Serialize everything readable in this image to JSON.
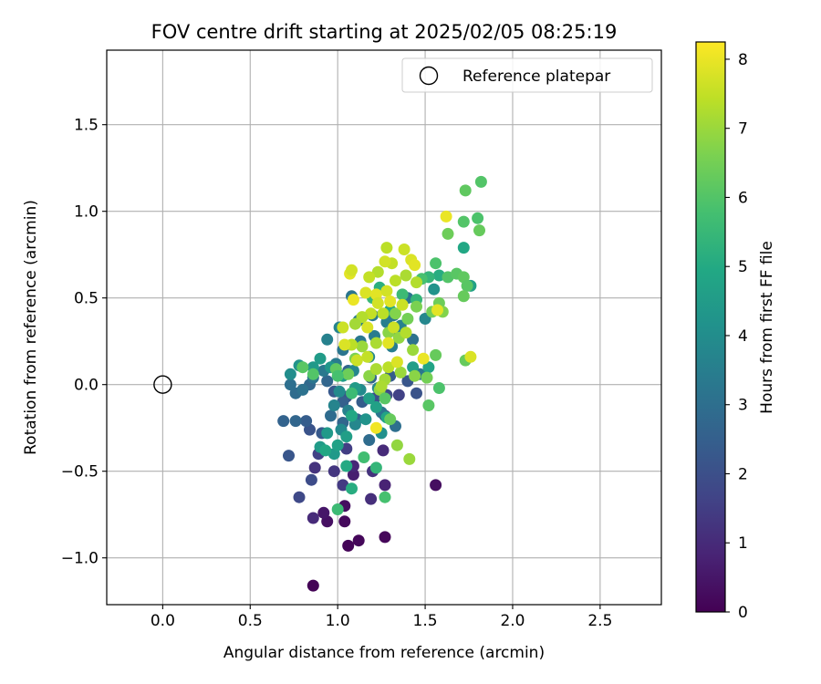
{
  "chart_data": {
    "type": "scatter",
    "title": "FOV centre drift starting at 2025/02/05 08:25:19",
    "xlabel": "Angular distance from reference (arcmin)",
    "ylabel": "Rotation from reference (arcmin)",
    "xlim": [
      -0.32,
      2.85
    ],
    "ylim": [
      -1.27,
      1.93
    ],
    "xticks": [
      0.0,
      0.5,
      1.0,
      1.5,
      2.0,
      2.5
    ],
    "xtick_labels": [
      "0.0",
      "0.5",
      "1.0",
      "1.5",
      "2.0",
      "2.5"
    ],
    "yticks": [
      -1.0,
      -0.5,
      0.0,
      0.5,
      1.0,
      1.5
    ],
    "ytick_labels": [
      "−1.0",
      "−0.5",
      "0.0",
      "0.5",
      "1.0",
      "1.5"
    ],
    "grid": true,
    "legend": {
      "placement": "upper right",
      "entries": [
        "Reference platepar"
      ]
    },
    "reference_point": {
      "x": 0.0,
      "y": 0.0,
      "marker": "open circle"
    },
    "colorbar": {
      "label": "Hours from first FF file",
      "colormap": "viridis",
      "range": [
        0,
        8.25
      ],
      "ticks": [
        0,
        1,
        2,
        3,
        4,
        5,
        6,
        7,
        8
      ],
      "tick_labels": [
        "0",
        "1",
        "2",
        "3",
        "4",
        "5",
        "6",
        "7",
        "8"
      ]
    },
    "points": [
      [
        0.86,
        -1.16,
        0.05
      ],
      [
        1.06,
        -0.93,
        0.1
      ],
      [
        1.12,
        -0.9,
        0.15
      ],
      [
        1.27,
        -0.88,
        0.12
      ],
      [
        1.04,
        -0.79,
        0.2
      ],
      [
        0.94,
        -0.79,
        0.35
      ],
      [
        1.04,
        -0.7,
        0.3
      ],
      [
        0.92,
        -0.74,
        0.5
      ],
      [
        1.56,
        -0.58,
        0.3
      ],
      [
        1.27,
        -0.58,
        0.8
      ],
      [
        1.09,
        -0.52,
        0.7
      ],
      [
        1.19,
        -0.66,
        1.1
      ],
      [
        0.86,
        -0.77,
        1.0
      ],
      [
        0.87,
        -0.48,
        1.2
      ],
      [
        0.98,
        -0.5,
        1.3
      ],
      [
        1.03,
        -0.58,
        1.4
      ],
      [
        1.09,
        -0.47,
        0.9
      ],
      [
        1.2,
        -0.5,
        1.2
      ],
      [
        1.26,
        -0.38,
        1.0
      ],
      [
        1.05,
        -0.37,
        1.5
      ],
      [
        0.89,
        -0.4,
        1.6
      ],
      [
        0.78,
        -0.65,
        1.8
      ],
      [
        0.85,
        -0.55,
        1.9
      ],
      [
        0.72,
        -0.41,
        2.2
      ],
      [
        0.84,
        -0.26,
        2.1
      ],
      [
        0.91,
        -0.28,
        2.3
      ],
      [
        0.82,
        -0.21,
        2.4
      ],
      [
        0.69,
        -0.21,
        2.6
      ],
      [
        0.76,
        -0.21,
        2.7
      ],
      [
        1.27,
        -0.18,
        1.3
      ],
      [
        1.35,
        -0.06,
        1.6
      ],
      [
        1.28,
        -0.06,
        1.8
      ],
      [
        1.21,
        -0.08,
        2.0
      ],
      [
        1.05,
        -0.07,
        2.1
      ],
      [
        0.98,
        -0.04,
        2.3
      ],
      [
        1.03,
        -0.1,
        2.5
      ],
      [
        1.14,
        -0.1,
        2.4
      ],
      [
        1.11,
        -0.2,
        2.6
      ],
      [
        1.03,
        -0.22,
        2.7
      ],
      [
        0.96,
        -0.18,
        2.9
      ],
      [
        1.18,
        -0.32,
        2.9
      ],
      [
        1.33,
        -0.24,
        3.0
      ],
      [
        1.25,
        -0.16,
        3.2
      ],
      [
        1.4,
        0.02,
        2.2
      ],
      [
        1.45,
        -0.05,
        2.1
      ],
      [
        1.3,
        0.05,
        2.4
      ],
      [
        1.19,
        0.04,
        2.6
      ],
      [
        1.06,
        0.08,
        2.7
      ],
      [
        0.94,
        0.02,
        2.7
      ],
      [
        0.84,
        0.0,
        2.8
      ],
      [
        0.76,
        -0.05,
        2.9
      ],
      [
        0.73,
        0.0,
        3.0
      ],
      [
        0.8,
        -0.03,
        3.1
      ],
      [
        0.86,
        0.04,
        3.2
      ],
      [
        0.92,
        0.08,
        3.3
      ],
      [
        0.99,
        0.12,
        3.4
      ],
      [
        1.03,
        0.2,
        3.2
      ],
      [
        1.13,
        0.25,
        3.3
      ],
      [
        1.21,
        0.28,
        3.4
      ],
      [
        1.31,
        0.22,
        3.5
      ],
      [
        1.36,
        0.34,
        3.6
      ],
      [
        1.28,
        0.36,
        3.5
      ],
      [
        1.2,
        0.4,
        3.4
      ],
      [
        1.12,
        0.37,
        3.3
      ],
      [
        1.01,
        0.33,
        3.7
      ],
      [
        0.94,
        0.26,
        3.6
      ],
      [
        1.08,
        0.51,
        3.2
      ],
      [
        1.43,
        0.26,
        3.1
      ],
      [
        1.47,
        0.06,
        3.2
      ],
      [
        1.32,
        0.4,
        3.3
      ],
      [
        1.4,
        0.5,
        3.2
      ],
      [
        1.55,
        0.55,
        4.2
      ],
      [
        1.5,
        0.38,
        3.8
      ],
      [
        1.35,
        0.28,
        3.7
      ],
      [
        1.18,
        0.16,
        3.8
      ],
      [
        1.09,
        0.08,
        3.8
      ],
      [
        1.01,
        -0.04,
        3.9
      ],
      [
        0.98,
        -0.12,
        3.7
      ],
      [
        1.06,
        -0.15,
        3.6
      ],
      [
        1.13,
        -0.03,
        3.9
      ],
      [
        1.23,
        -0.02,
        3.8
      ],
      [
        1.1,
        -0.23,
        3.8
      ],
      [
        1.02,
        -0.26,
        3.9
      ],
      [
        1.25,
        -0.28,
        4.1
      ],
      [
        1.16,
        -0.2,
        4.2
      ],
      [
        0.94,
        -0.28,
        4.4
      ],
      [
        0.9,
        -0.36,
        4.5
      ],
      [
        0.98,
        -0.4,
        4.4
      ],
      [
        1.05,
        -0.3,
        4.6
      ],
      [
        0.73,
        0.06,
        4.0
      ],
      [
        0.78,
        0.11,
        4.2
      ],
      [
        0.86,
        0.1,
        4.4
      ],
      [
        0.9,
        0.15,
        4.5
      ],
      [
        0.96,
        0.1,
        4.3
      ],
      [
        1.03,
        0.05,
        4.5
      ],
      [
        1.1,
        -0.02,
        4.5
      ],
      [
        1.18,
        -0.08,
        4.6
      ],
      [
        1.22,
        -0.13,
        4.7
      ],
      [
        1.28,
        -0.19,
        4.8
      ],
      [
        1.08,
        -0.18,
        4.9
      ],
      [
        1.0,
        -0.35,
        4.7
      ],
      [
        0.93,
        -0.38,
        4.9
      ],
      [
        1.05,
        -0.47,
        5.0
      ],
      [
        1.08,
        -0.6,
        5.1
      ],
      [
        1.22,
        -0.48,
        5.4
      ],
      [
        1.0,
        -0.72,
        5.6
      ],
      [
        1.27,
        -0.65,
        5.8
      ],
      [
        1.15,
        -0.42,
        5.7
      ],
      [
        1.52,
        0.1,
        4.8
      ],
      [
        1.43,
        0.1,
        4.6
      ],
      [
        1.72,
        0.79,
        4.9
      ],
      [
        1.76,
        0.57,
        4.7
      ],
      [
        1.58,
        0.63,
        5.1
      ],
      [
        1.3,
        0.43,
        4.8
      ],
      [
        1.24,
        0.56,
        5.2
      ],
      [
        1.2,
        0.5,
        5.5
      ],
      [
        1.37,
        0.52,
        5.6
      ],
      [
        1.45,
        0.49,
        5.4
      ],
      [
        1.52,
        0.62,
        5.4
      ],
      [
        1.48,
        0.61,
        5.8
      ],
      [
        1.56,
        0.7,
        5.9
      ],
      [
        1.63,
        0.62,
        6.0
      ],
      [
        1.68,
        0.64,
        6.1
      ],
      [
        1.72,
        0.62,
        6.2
      ],
      [
        1.74,
        0.57,
        6.1
      ],
      [
        1.72,
        0.51,
        6.3
      ],
      [
        1.58,
        0.47,
        6.4
      ],
      [
        1.54,
        0.42,
        6.5
      ],
      [
        1.6,
        0.42,
        6.7
      ],
      [
        1.45,
        0.45,
        6.6
      ],
      [
        1.4,
        0.38,
        6.5
      ],
      [
        1.33,
        0.41,
        6.7
      ],
      [
        1.29,
        0.3,
        6.8
      ],
      [
        1.35,
        0.27,
        6.9
      ],
      [
        1.43,
        0.2,
        7.0
      ],
      [
        1.56,
        0.17,
        6.3
      ],
      [
        1.58,
        -0.02,
        5.9
      ],
      [
        1.52,
        -0.12,
        6.1
      ],
      [
        1.51,
        0.04,
        6.5
      ],
      [
        1.44,
        0.05,
        6.8
      ],
      [
        1.36,
        0.07,
        7.0
      ],
      [
        1.27,
        0.03,
        7.1
      ],
      [
        1.24,
        -0.03,
        6.9
      ],
      [
        1.18,
        0.05,
        6.8
      ],
      [
        1.1,
        0.15,
        6.6
      ],
      [
        1.06,
        0.06,
        6.4
      ],
      [
        0.99,
        0.09,
        6.2
      ],
      [
        0.86,
        0.06,
        6.0
      ],
      [
        0.8,
        0.1,
        6.1
      ],
      [
        1.0,
        0.05,
        5.8
      ],
      [
        1.08,
        -0.05,
        5.6
      ],
      [
        1.27,
        -0.08,
        6.1
      ],
      [
        1.3,
        -0.2,
        6.3
      ],
      [
        1.34,
        -0.35,
        6.9
      ],
      [
        1.41,
        -0.43,
        7.0
      ],
      [
        1.25,
        -0.01,
        7.2
      ],
      [
        1.82,
        1.17,
        6.0
      ],
      [
        1.73,
        1.12,
        6.2
      ],
      [
        1.8,
        0.96,
        5.9
      ],
      [
        1.81,
        0.89,
        6.3
      ],
      [
        1.72,
        0.94,
        6.0
      ],
      [
        1.63,
        0.87,
        6.4
      ],
      [
        1.73,
        0.14,
        6.3
      ],
      [
        1.62,
        0.97,
        8.0
      ],
      [
        1.76,
        0.16,
        7.8
      ],
      [
        1.28,
        0.79,
        7.4
      ],
      [
        1.38,
        0.78,
        7.6
      ],
      [
        1.42,
        0.72,
        7.8
      ],
      [
        1.44,
        0.69,
        7.9
      ],
      [
        1.31,
        0.7,
        7.5
      ],
      [
        1.27,
        0.71,
        7.7
      ],
      [
        1.23,
        0.65,
        7.3
      ],
      [
        1.18,
        0.62,
        7.5
      ],
      [
        1.07,
        0.64,
        7.9
      ],
      [
        1.08,
        0.66,
        7.7
      ],
      [
        1.16,
        0.53,
        7.8
      ],
      [
        1.09,
        0.49,
        8.0
      ],
      [
        1.22,
        0.52,
        7.9
      ],
      [
        1.28,
        0.54,
        7.7
      ],
      [
        1.33,
        0.6,
        7.4
      ],
      [
        1.39,
        0.63,
        7.2
      ],
      [
        1.45,
        0.59,
        7.3
      ],
      [
        1.37,
        0.46,
        7.6
      ],
      [
        1.3,
        0.48,
        7.9
      ],
      [
        1.23,
        0.47,
        7.7
      ],
      [
        1.19,
        0.41,
        7.5
      ],
      [
        1.14,
        0.39,
        7.3
      ],
      [
        1.1,
        0.35,
        7.1
      ],
      [
        1.03,
        0.33,
        7.6
      ],
      [
        1.17,
        0.33,
        7.8
      ],
      [
        1.26,
        0.41,
        7.4
      ],
      [
        1.32,
        0.33,
        7.6
      ],
      [
        1.29,
        0.24,
        7.9
      ],
      [
        1.22,
        0.24,
        7.2
      ],
      [
        1.14,
        0.22,
        7.0
      ],
      [
        1.08,
        0.23,
        7.4
      ],
      [
        1.04,
        0.23,
        7.8
      ],
      [
        1.11,
        0.14,
        7.6
      ],
      [
        1.17,
        0.16,
        7.5
      ],
      [
        1.22,
        0.09,
        7.2
      ],
      [
        1.29,
        0.1,
        7.4
      ],
      [
        1.34,
        0.13,
        7.8
      ],
      [
        1.39,
        0.3,
        7.3
      ],
      [
        1.49,
        0.15,
        8.0
      ],
      [
        1.57,
        0.43,
        7.9
      ],
      [
        1.22,
        -0.25,
        8.1
      ]
    ]
  }
}
